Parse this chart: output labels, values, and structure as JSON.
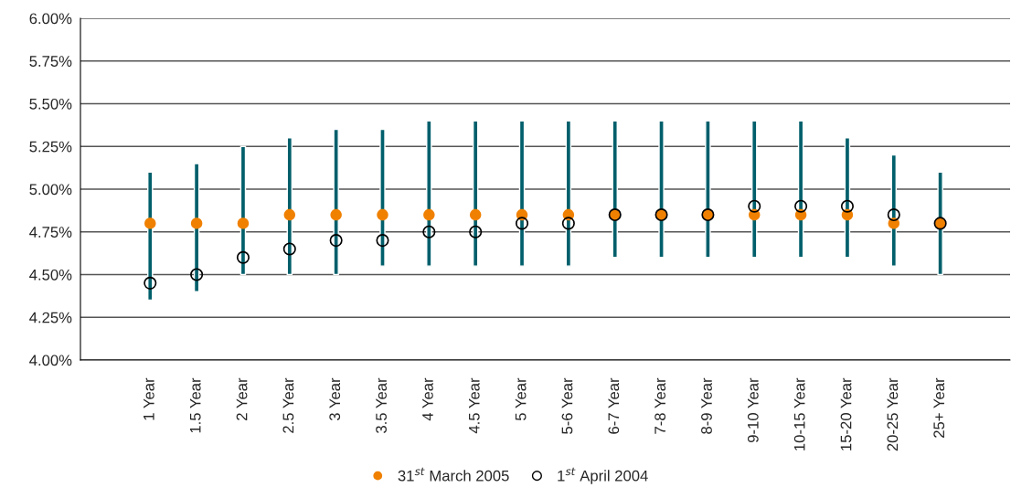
{
  "chart_data": {
    "type": "scatter",
    "categories": [
      null,
      "1 Year",
      "1.5 Year",
      "2 Year",
      "2.5 Year",
      "3 Year",
      "3.5 Year",
      "4 Year",
      "4.5 Year",
      "5 Year",
      "5-6 Year",
      "6-7 Year",
      "7-8 Year",
      "8-9 Year",
      "9-10 Year",
      "10-15 Year",
      "15-20 Year",
      "20-25 Year",
      "25+ Year",
      null
    ],
    "series": [
      {
        "type": "bar",
        "color": "#005f6b",
        "base": [
          null,
          4.35,
          4.4,
          4.5,
          4.5,
          4.5,
          4.55,
          4.55,
          4.55,
          4.55,
          4.55,
          4.6,
          4.6,
          4.6,
          4.6,
          4.6,
          4.6,
          4.55,
          4.5,
          null
        ],
        "values": [
          null,
          0.75,
          0.75,
          0.75,
          0.8,
          0.85,
          0.8,
          0.85,
          0.85,
          0.85,
          0.85,
          0.8,
          0.8,
          0.8,
          0.8,
          0.8,
          0.7,
          0.65,
          0.6,
          null
        ]
      },
      {
        "name": "31$^{st}$ March 2005",
        "color": "#f08000",
        "marker": "circle",
        "values": [
          null,
          4.8,
          4.8,
          4.8,
          4.85,
          4.85,
          4.85,
          4.85,
          4.85,
          4.85,
          4.85,
          4.85,
          4.85,
          4.85,
          4.85,
          4.85,
          4.85,
          4.8,
          4.8,
          null
        ]
      },
      {
        "name": "1$^{st}$ April 2004",
        "color": "#000000",
        "marker": "circle",
        "values": [
          null,
          4.45,
          4.5,
          4.6,
          4.65,
          4.7,
          4.7,
          4.75,
          4.75,
          4.8,
          4.8,
          4.85,
          4.85,
          4.85,
          4.9,
          4.9,
          4.9,
          4.85,
          4.8,
          null
        ]
      }
    ],
    "ylim": [
      4.0,
      6.0
    ],
    "yticks": [
      {
        "value": 4.0,
        "label": "4.00%"
      },
      {
        "value": 4.25,
        "label": "4.25%"
      },
      {
        "value": 4.5,
        "label": "4.50%"
      },
      {
        "value": 4.75,
        "label": "4.75%"
      },
      {
        "value": 5.0,
        "label": "5.00%"
      },
      {
        "value": 5.25,
        "label": "5.25%"
      },
      {
        "value": 5.5,
        "label": "5.50%"
      },
      {
        "value": 5.75,
        "label": "5.75%"
      },
      {
        "value": 6.0,
        "label": "6.00%"
      }
    ],
    "grid": "y",
    "legend": "bottom"
  }
}
